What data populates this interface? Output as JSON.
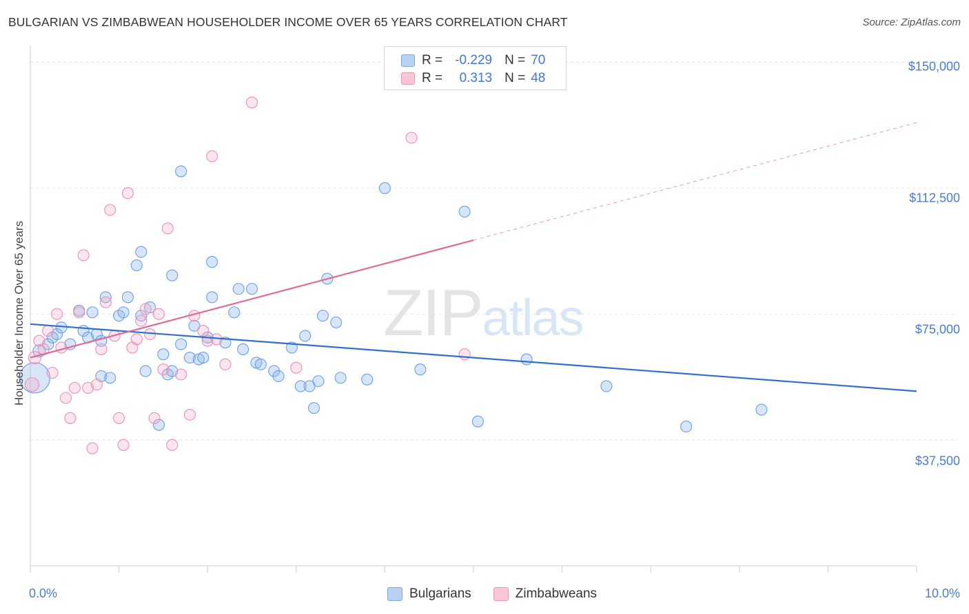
{
  "title": "BULGARIAN VS ZIMBABWEAN HOUSEHOLDER INCOME OVER 65 YEARS CORRELATION CHART",
  "source": "Source: ZipAtlas.com",
  "watermark": {
    "zip": "ZIP",
    "atlas": "atlas"
  },
  "legend_top": {
    "rows": [
      {
        "r_label": "R =",
        "r_value": "-0.229",
        "n_label": "N =",
        "n_value": "70"
      },
      {
        "r_label": "R =",
        "r_value": " 0.313",
        "n_label": "N =",
        "n_value": "48"
      }
    ]
  },
  "legend_bottom": [
    "Bulgarians",
    "Zimbabweans"
  ],
  "colors": {
    "bulgarians": "#6b9ee6",
    "zimbabweans": "#ec8fb0",
    "blue_line": "#2f6fd0",
    "pink_line": "#e06a94",
    "grid": "#e2e2e2"
  },
  "chart_data": {
    "type": "scatter",
    "title": "BULGARIAN VS ZIMBABWEAN HOUSEHOLDER INCOME OVER 65 YEARS CORRELATION CHART",
    "xlabel": "",
    "ylabel": "Householder Income Over 65 years",
    "xlim": [
      0,
      10
    ],
    "ylim": [
      0,
      155000
    ],
    "x_tick_labels": [
      "0.0%",
      "10.0%"
    ],
    "y_tick_labels": [
      "$150,000",
      "$112,500",
      "$75,000",
      "$37,500"
    ],
    "y_ticks": [
      150000,
      112500,
      75000,
      37500
    ],
    "grid": true,
    "series": [
      {
        "name": "Bulgarians",
        "r": -0.229,
        "n": 70,
        "trend": {
          "x0": 0.0,
          "y0": 72000,
          "x1": 10.0,
          "y1": 52000
        },
        "points": [
          [
            0.05,
            56000,
            22
          ],
          [
            0.1,
            64000,
            9
          ],
          [
            0.2,
            66000,
            8
          ],
          [
            0.25,
            68000,
            8
          ],
          [
            0.3,
            69000,
            8
          ],
          [
            0.35,
            71000,
            8
          ],
          [
            0.45,
            66000,
            8
          ],
          [
            0.55,
            76000,
            8
          ],
          [
            0.6,
            70000,
            8
          ],
          [
            0.65,
            68000,
            8
          ],
          [
            0.7,
            75500,
            8
          ],
          [
            0.75,
            69000,
            8
          ],
          [
            0.8,
            67000,
            8
          ],
          [
            0.8,
            56500,
            8
          ],
          [
            0.85,
            80000,
            8
          ],
          [
            0.9,
            56000,
            8
          ],
          [
            1.0,
            74500,
            8
          ],
          [
            1.05,
            75500,
            8
          ],
          [
            1.1,
            80000,
            8
          ],
          [
            1.2,
            89500,
            8
          ],
          [
            1.25,
            93500,
            8
          ],
          [
            1.25,
            74500,
            8
          ],
          [
            1.3,
            58000,
            8
          ],
          [
            1.35,
            77000,
            8
          ],
          [
            1.45,
            42000,
            8
          ],
          [
            1.5,
            63000,
            8
          ],
          [
            1.55,
            57000,
            8
          ],
          [
            1.6,
            86500,
            8
          ],
          [
            1.6,
            58000,
            8
          ],
          [
            1.7,
            117500,
            8
          ],
          [
            1.7,
            66000,
            8
          ],
          [
            1.8,
            62000,
            8
          ],
          [
            1.85,
            71500,
            8
          ],
          [
            1.9,
            61500,
            8
          ],
          [
            1.95,
            62000,
            8
          ],
          [
            2.0,
            68000,
            8
          ],
          [
            2.05,
            80000,
            8
          ],
          [
            2.05,
            90500,
            8
          ],
          [
            2.2,
            66500,
            8
          ],
          [
            2.3,
            75500,
            8
          ],
          [
            2.35,
            82500,
            8
          ],
          [
            2.4,
            64500,
            8
          ],
          [
            2.5,
            82500,
            8
          ],
          [
            2.55,
            60500,
            8
          ],
          [
            2.6,
            60000,
            8
          ],
          [
            2.75,
            58000,
            8
          ],
          [
            2.8,
            56500,
            8
          ],
          [
            2.95,
            65000,
            8
          ],
          [
            3.05,
            53500,
            8
          ],
          [
            3.1,
            68500,
            8
          ],
          [
            3.15,
            53500,
            8
          ],
          [
            3.2,
            47000,
            8
          ],
          [
            3.25,
            55000,
            8
          ],
          [
            3.3,
            74500,
            8
          ],
          [
            3.35,
            85500,
            8
          ],
          [
            3.45,
            72500,
            8
          ],
          [
            3.5,
            56000,
            8
          ],
          [
            3.8,
            55500,
            8
          ],
          [
            4.0,
            112500,
            8
          ],
          [
            4.4,
            58500,
            8
          ],
          [
            4.9,
            105500,
            8
          ],
          [
            5.05,
            43000,
            8
          ],
          [
            5.6,
            61500,
            8
          ],
          [
            6.5,
            53500,
            8
          ],
          [
            7.4,
            41500,
            8
          ],
          [
            8.25,
            46500,
            8
          ]
        ]
      },
      {
        "name": "Zimbabweans",
        "r": 0.313,
        "n": 48,
        "trend": {
          "x0": 0.0,
          "y0": 62000,
          "x1": 5.0,
          "y1": 97000,
          "dash_to_x": 10.0,
          "dash_to_y": 132000
        },
        "points": [
          [
            0.02,
            54000,
            10
          ],
          [
            0.05,
            62000,
            9
          ],
          [
            0.1,
            67000,
            8
          ],
          [
            0.15,
            64500,
            8
          ],
          [
            0.2,
            70000,
            8
          ],
          [
            0.25,
            57500,
            8
          ],
          [
            0.3,
            75000,
            8
          ],
          [
            0.35,
            65000,
            8
          ],
          [
            0.4,
            50000,
            8
          ],
          [
            0.45,
            44000,
            8
          ],
          [
            0.5,
            53000,
            8
          ],
          [
            0.55,
            75500,
            8
          ],
          [
            0.6,
            92500,
            8
          ],
          [
            0.65,
            53000,
            8
          ],
          [
            0.7,
            35000,
            8
          ],
          [
            0.75,
            54000,
            8
          ],
          [
            0.8,
            64500,
            8
          ],
          [
            0.85,
            78500,
            8
          ],
          [
            0.9,
            106000,
            8
          ],
          [
            0.95,
            68500,
            8
          ],
          [
            1.0,
            44000,
            8
          ],
          [
            1.05,
            36000,
            8
          ],
          [
            1.1,
            111000,
            8
          ],
          [
            1.15,
            65000,
            8
          ],
          [
            1.2,
            67500,
            8
          ],
          [
            1.25,
            73000,
            8
          ],
          [
            1.3,
            76500,
            8
          ],
          [
            1.35,
            69000,
            8
          ],
          [
            1.4,
            44000,
            8
          ],
          [
            1.45,
            75000,
            8
          ],
          [
            1.5,
            58500,
            8
          ],
          [
            1.55,
            100500,
            8
          ],
          [
            1.6,
            36000,
            8
          ],
          [
            1.7,
            57000,
            8
          ],
          [
            1.8,
            45000,
            8
          ],
          [
            1.85,
            74500,
            8
          ],
          [
            1.95,
            70000,
            8
          ],
          [
            2.0,
            67000,
            8
          ],
          [
            2.05,
            122000,
            8
          ],
          [
            2.1,
            67500,
            8
          ],
          [
            2.2,
            60000,
            8
          ],
          [
            2.5,
            138000,
            8
          ],
          [
            3.0,
            59000,
            8
          ],
          [
            4.3,
            127500,
            8
          ],
          [
            4.9,
            63000,
            8
          ]
        ]
      }
    ]
  }
}
